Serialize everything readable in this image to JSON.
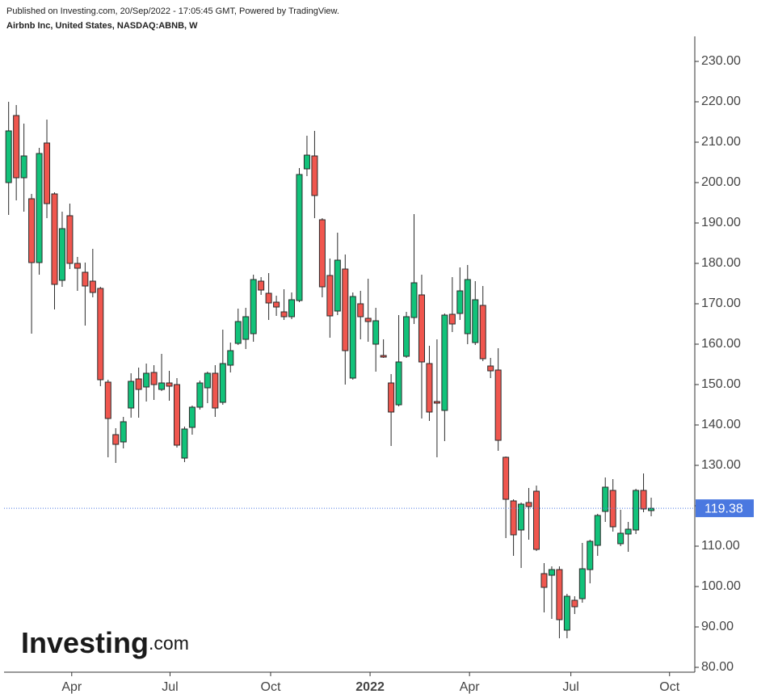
{
  "header": {
    "published": "Published on Investing.com, 20/Sep/2022 - 17:05:45 GMT, Powered by TradingView.",
    "instrument": "Airbnb Inc, United States, NASDAQ:ABNB, W"
  },
  "watermark": {
    "brand": "Investing",
    "suffix": ".com"
  },
  "chart_data": {
    "type": "candlestick",
    "categories": [
      null,
      null,
      null,
      null,
      null,
      null,
      null,
      null,
      null,
      null,
      null,
      null,
      null,
      null,
      null,
      null,
      null,
      null,
      null,
      null,
      null,
      null,
      null,
      null,
      null,
      null,
      null,
      null,
      null,
      null,
      null,
      null,
      null,
      null,
      null,
      null,
      null,
      null,
      null,
      null,
      null,
      null,
      null,
      null,
      null,
      null,
      null,
      null,
      null,
      null,
      null,
      null,
      null,
      null,
      null,
      null,
      null,
      null,
      null,
      null,
      null,
      null,
      null,
      null,
      null,
      null,
      null,
      null,
      null,
      null,
      null,
      null,
      null,
      null,
      null,
      null,
      null,
      null,
      null,
      null,
      null,
      null,
      null,
      null,
      null
    ],
    "open": [
      200,
      216.6,
      201.2,
      196,
      180.2,
      209.8,
      197.2,
      175.8,
      191.8,
      180,
      177.8,
      175.6,
      173.8,
      150.6,
      137.6,
      135.8,
      144.2,
      151.4,
      149.4,
      153,
      148.8,
      150.4,
      150,
      131.8,
      139.4,
      144.4,
      149.2,
      152.8,
      145.6,
      154.8,
      160.2,
      161.2,
      162.6,
      175.6,
      172.6,
      170.4,
      168,
      166.8,
      170.8,
      203.4,
      206.6,
      190.8,
      177,
      168.2,
      178.6,
      151.6,
      170,
      166.4,
      160,
      157.2,
      150.4,
      145,
      157,
      166.6,
      172.2,
      155.2,
      145.8,
      143.6,
      167.4,
      167.6,
      162.6,
      160.4,
      169.6,
      154.6,
      153.6,
      132,
      121.2,
      114,
      120.8,
      123.6,
      103.2,
      102.8,
      104.2,
      89.2,
      96.6,
      97,
      104.2,
      110.2,
      118.6,
      123.8,
      110.6,
      113,
      114,
      123.8,
      118.8
    ],
    "high": [
      220,
      219.2,
      214.6,
      197.2,
      208.6,
      215.6,
      197.6,
      192.8,
      194.8,
      181.6,
      180.2,
      183.6,
      174.2,
      151.2,
      139.2,
      142,
      152.8,
      154.2,
      155.2,
      154.8,
      157.6,
      153.4,
      151.6,
      139.6,
      144.8,
      151,
      153.2,
      154.8,
      163.6,
      160.4,
      168.8,
      169,
      177.2,
      176.6,
      177.6,
      172,
      173.6,
      172.8,
      203.6,
      211.6,
      212.8,
      191.2,
      181.2,
      187.6,
      182.2,
      172.8,
      173.2,
      176.2,
      169,
      161.2,
      152.6,
      167.2,
      168,
      192.2,
      177.2,
      159.6,
      161.2,
      167.6,
      176.6,
      179,
      179.6,
      175.6,
      174.4,
      156.6,
      159,
      132.2,
      121.6,
      120.8,
      124.4,
      125,
      105.8,
      105,
      105,
      98.2,
      97.6,
      110.8,
      111.6,
      118,
      127,
      126.6,
      119,
      116,
      124.2,
      128,
      122
    ],
    "low": [
      192,
      195.6,
      192.8,
      162.6,
      177.2,
      191.2,
      168.6,
      174.2,
      178.6,
      173.2,
      164.6,
      171.6,
      149.6,
      132,
      130.6,
      134.2,
      141.8,
      141.8,
      145.8,
      146.2,
      148.4,
      146,
      134.4,
      130.8,
      137.6,
      143.8,
      145.4,
      142,
      145,
      153,
      159.8,
      158.8,
      160.6,
      172.2,
      166,
      167,
      166,
      166.2,
      170.4,
      201.6,
      191.2,
      171.6,
      161.6,
      167.2,
      150,
      151.2,
      161.2,
      160.6,
      153.2,
      156.6,
      134.8,
      144.6,
      156.6,
      165,
      141.6,
      141,
      132,
      136,
      163,
      166,
      160,
      159.8,
      155.8,
      151.6,
      133.6,
      112,
      107.6,
      104.6,
      111.6,
      108.8,
      93.6,
      92,
      87.2,
      87.2,
      93.2,
      96,
      100.8,
      107.6,
      116,
      113.6,
      110,
      108.6,
      113,
      118.4,
      117.4
    ],
    "close": [
      212.8,
      201.2,
      206.6,
      180.2,
      207.2,
      194.8,
      174.8,
      188.6,
      180,
      178.8,
      174.4,
      172.8,
      151.2,
      141.6,
      135.2,
      140.8,
      150.8,
      148.8,
      152.8,
      150,
      150.4,
      149.6,
      135,
      139,
      144.4,
      150.4,
      152.8,
      144.2,
      155.2,
      158.4,
      165.6,
      166.8,
      176,
      173.4,
      170.2,
      169.2,
      166.8,
      171,
      202,
      206.8,
      196.8,
      174.2,
      167,
      180.8,
      158.4,
      171.8,
      166.8,
      165.6,
      165.8,
      156.8,
      143.2,
      155.6,
      166.8,
      175.2,
      155.6,
      143.2,
      145.4,
      167.2,
      165,
      173.2,
      176,
      171,
      156.4,
      153.4,
      136.2,
      121.6,
      112.8,
      120.4,
      119.8,
      109.2,
      99.8,
      104.2,
      91.8,
      97.6,
      95,
      104.4,
      111.2,
      117.6,
      124.6,
      114.8,
      113.2,
      114.2,
      123.8,
      119.2,
      119.38
    ],
    "up_color": "#12c27a",
    "down_color": "#f0564e",
    "outline_color": "#2a2a2a",
    "last_price": 119.38,
    "last_price_color": "#4a78e0",
    "xlim": [
      -0.6,
      89.7
    ],
    "xticks": [
      {
        "value": 8.25,
        "label": "Apr"
      },
      {
        "value": 21.1,
        "label": "Jul"
      },
      {
        "value": 34.25,
        "label": "Oct"
      },
      {
        "value": 47.25,
        "label": "2022"
      },
      {
        "value": 60.25,
        "label": "Apr"
      },
      {
        "value": 73.5,
        "label": "Jul"
      },
      {
        "value": 86.4,
        "label": "Oct"
      }
    ],
    "ylim": [
      78.8,
      236.2
    ],
    "yticks": [
      {
        "value": 80,
        "label": "80.00"
      },
      {
        "value": 90,
        "label": "90.00"
      },
      {
        "value": 100,
        "label": "100.00"
      },
      {
        "value": 110,
        "label": "110.00"
      },
      {
        "value": 120,
        "label": "120.00"
      },
      {
        "value": 130,
        "label": "130.00"
      },
      {
        "value": 140,
        "label": "140.00"
      },
      {
        "value": 150,
        "label": "150.00"
      },
      {
        "value": 160,
        "label": "160.00"
      },
      {
        "value": 170,
        "label": "170.00"
      },
      {
        "value": 180,
        "label": "180.00"
      },
      {
        "value": 190,
        "label": "190.00"
      },
      {
        "value": 200,
        "label": "200.00"
      },
      {
        "value": 210,
        "label": "210.00"
      },
      {
        "value": 220,
        "label": "220.00"
      },
      {
        "value": 230,
        "label": "230.00"
      }
    ],
    "grid": false
  }
}
